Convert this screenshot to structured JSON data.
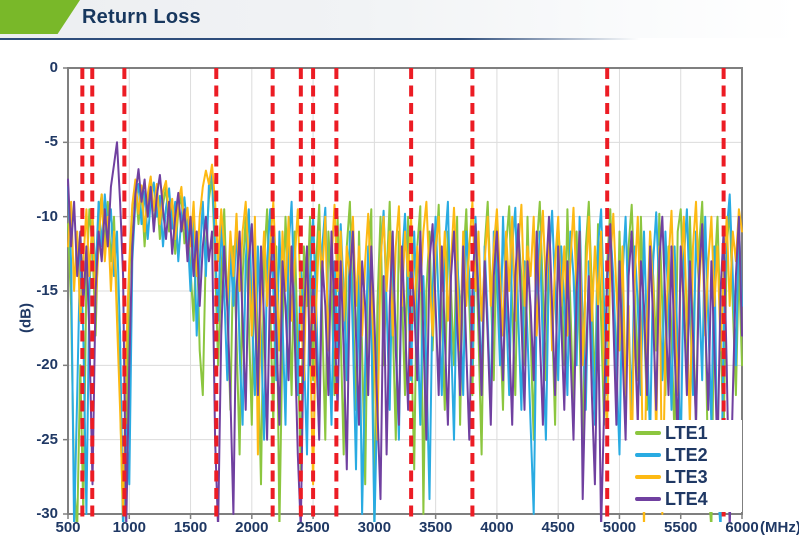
{
  "header": {
    "title": "Return Loss"
  },
  "chart_data": {
    "type": "line",
    "title": "Return Loss",
    "xlabel": "(MHz)",
    "ylabel": "(dB)",
    "xlim": [
      500,
      6000
    ],
    "ylim": [
      -30,
      0
    ],
    "x_ticks": [
      500,
      1000,
      1500,
      2000,
      2500,
      3000,
      3500,
      4000,
      4500,
      5000,
      5500,
      6000
    ],
    "y_ticks": [
      0,
      -5,
      -10,
      -15,
      -20,
      -25,
      -30
    ],
    "grid": true,
    "legend_position": "bottom-right",
    "band_edge_markers_mhz": [
      617,
      698,
      960,
      1710,
      2170,
      2400,
      2500,
      2690,
      3300,
      3800,
      4900,
      5850
    ],
    "colors": {
      "marker": "#ec1c24",
      "grid": "#dcdcdc",
      "axis": "#7f7f7f",
      "tick_text": "#1f3864"
    },
    "x_start": 500,
    "x_step": 25,
    "series": [
      {
        "name": "LTE1",
        "color": "#8cc63f",
        "values": [
          -10.5,
          -16,
          -28,
          -31,
          -20,
          -30,
          -14,
          -9.5,
          -12,
          -18,
          -10,
          -8.5,
          -12,
          -9,
          -13,
          -10,
          -16,
          -22,
          -31,
          -26,
          -14,
          -9.5,
          -7.8,
          -10.5,
          -8.2,
          -12,
          -8.8,
          -7.6,
          -10.8,
          -8.4,
          -11.5,
          -9.2,
          -8,
          -11,
          -9,
          -12.5,
          -9.6,
          -8.6,
          -11.8,
          -10.2,
          -13.5,
          -17,
          -11,
          -19,
          -22,
          -12,
          -8.8,
          -7.4,
          -13,
          -20,
          -14,
          -9.5,
          -16,
          -23,
          -12,
          -18,
          -26,
          -14,
          -10,
          -17,
          -24,
          -11,
          -19,
          -28,
          -13,
          -9.5,
          -16,
          -24,
          -12,
          -31,
          -18,
          -10,
          -15,
          -22,
          -11,
          -19,
          -27,
          -12,
          -16,
          -10,
          -21,
          -13,
          -9.2,
          -17,
          -25,
          -11,
          -15,
          -22,
          -10,
          -18,
          -26,
          -12,
          -9,
          -16,
          -23,
          -11,
          -19,
          -28,
          -13,
          -9.5,
          -31,
          -16,
          -10,
          -20,
          -14,
          -9,
          -17,
          -25,
          -11,
          -15,
          -22,
          -10,
          -18,
          -27,
          -12,
          -9.3,
          -30,
          -15,
          -11,
          -19,
          -13,
          -9.2,
          -17,
          -23,
          -11,
          -15,
          -20,
          -10,
          -24,
          -13,
          -9.5,
          -16,
          -22,
          -11,
          -18,
          -26,
          -12,
          -9,
          -15,
          -21,
          -10,
          -17,
          -23,
          -12,
          -9.3,
          -16,
          -22,
          -11,
          -14,
          -20,
          -10,
          -18,
          -25,
          -12,
          -9,
          -15,
          -21,
          -11,
          -17,
          -24,
          -10.5,
          -14,
          -20,
          -9.5,
          -16,
          -23,
          -11,
          -18,
          -26,
          -12,
          -9,
          -15,
          -22,
          -10.5,
          -17,
          -24,
          -13,
          -9.5,
          -16,
          -21,
          -11,
          -18,
          -24,
          -12,
          -9.2,
          -15,
          -21,
          -10,
          -17,
          -23,
          -11,
          -14,
          -19,
          -9.8,
          -16,
          -22,
          -12,
          -18,
          -25,
          -11,
          -9.5,
          -15,
          -21,
          -10,
          -17,
          -24,
          -12,
          -9,
          -16,
          -28,
          -31,
          -14,
          -10,
          -18,
          -25,
          -12,
          -9.5,
          -16,
          -22,
          -13,
          -20
        ]
      },
      {
        "name": "LTE2",
        "color": "#29abe2",
        "values": [
          -8,
          -13,
          -31,
          -22,
          -12,
          -18,
          -30,
          -15,
          -10,
          -14,
          -9,
          -12,
          -8.5,
          -11,
          -9.5,
          -14,
          -11,
          -18,
          -31,
          -24,
          -28,
          -13,
          -9,
          -7.8,
          -10.5,
          -8.3,
          -11.5,
          -9,
          -7.7,
          -10,
          -8.6,
          -12,
          -9.4,
          -8.1,
          -10.8,
          -9,
          -13,
          -10,
          -8.7,
          -11,
          -15,
          -10,
          -18,
          -13,
          -9,
          -14,
          -7.9,
          -6.8,
          -12,
          -17,
          -10,
          -15,
          -21,
          -12,
          -16,
          -10,
          -19,
          -24,
          -13,
          -9.5,
          -16,
          -22,
          -12,
          -18,
          -25,
          -13,
          -9.5,
          -15,
          -21,
          -11,
          -17,
          -24,
          -12,
          -9,
          -16,
          -22,
          -13,
          -19,
          -26,
          -14,
          -10,
          -16,
          -23,
          -12,
          -9.4,
          -17,
          -24,
          -13,
          -19,
          -10.5,
          -15,
          -21,
          -11,
          -18,
          -27,
          -14,
          -30,
          -20,
          -12,
          -17,
          -31,
          -22,
          -13,
          -9.6,
          -16,
          -23,
          -12,
          -18,
          -25,
          -13,
          -9.8,
          -15,
          -21,
          -11,
          -17,
          -24,
          -14,
          -20,
          -29,
          -15,
          -10,
          -16,
          -22,
          -12,
          -9,
          -18,
          -25,
          -13,
          -16,
          -22,
          -11,
          -14,
          -20,
          -10,
          -15,
          -21,
          -12,
          -17,
          -23,
          -11,
          -14,
          -20,
          -10,
          -16,
          -22,
          -12,
          -9.4,
          -17,
          -23,
          -13,
          -18,
          -24,
          -30,
          -16,
          -11,
          -19,
          -25,
          -13,
          -9.6,
          -15,
          -21,
          -12,
          -16,
          -22,
          -11,
          -14,
          -20,
          -10,
          -17,
          -23,
          -13,
          -18,
          -24,
          -12,
          -9.5,
          -16,
          -22,
          -11,
          -14,
          -20,
          -26,
          -14,
          -10,
          -17,
          -23,
          -12,
          -16,
          -22,
          -11,
          -18,
          -25,
          -13,
          -9.7,
          -15,
          -21,
          -11,
          -16,
          -23,
          -12,
          -19,
          -26,
          -13,
          -9.5,
          -16,
          -22,
          -11,
          -15,
          -21,
          -10,
          -17,
          -24,
          -12,
          -28,
          -31,
          -18,
          -11,
          -8.5,
          -14,
          -20,
          -10.5,
          -16
        ]
      },
      {
        "name": "LTE3",
        "color": "#fdb913",
        "values": [
          -12,
          -9,
          -15,
          -11,
          -17,
          -13,
          -9.5,
          -14,
          -10,
          -16,
          -12,
          -8.5,
          -13,
          -10,
          -15,
          -11,
          -17,
          -23,
          -30,
          -19,
          -13,
          -9.2,
          -7.5,
          -9.8,
          -7.9,
          -11,
          -8.5,
          -7.3,
          -9.6,
          -7.8,
          -10.5,
          -8.3,
          -7.6,
          -10,
          -8.8,
          -11.5,
          -9,
          -8,
          -10.8,
          -9.4,
          -12,
          -9,
          -14,
          -10,
          -8,
          -6.9,
          -7.8,
          -6.5,
          -9,
          -13,
          -9.5,
          -12,
          -16,
          -11,
          -14,
          -9.8,
          -15,
          -11,
          -9,
          -13,
          -18,
          -10,
          -26,
          -15,
          -11,
          -16,
          -12,
          -9,
          -14,
          -19,
          -11,
          -15,
          -10,
          -17,
          -13,
          -9.5,
          -16,
          -21,
          -12,
          -18,
          -28,
          -16,
          -11,
          -14,
          -10,
          -19,
          -13,
          -9.2,
          -15,
          -11,
          -17,
          -12,
          -14,
          -10,
          -16,
          -12,
          -18,
          -13,
          -9.8,
          -15,
          -20,
          -25,
          -13,
          -10,
          -15,
          -11,
          -18,
          -12,
          -9.3,
          -16,
          -11,
          -14,
          -10,
          -17,
          -12,
          -15,
          -11,
          -9,
          -14,
          -18,
          -12,
          -10,
          -15,
          -11,
          -17,
          -13,
          -9.4,
          -14,
          -19,
          -11,
          -16,
          -12,
          -9,
          -15,
          -11,
          -17,
          -13,
          -10,
          -16,
          -12,
          -9.5,
          -14,
          -18,
          -11,
          -15,
          -10,
          -17,
          -12,
          -9.2,
          -16,
          -12,
          -14,
          -10,
          -18,
          -13,
          -9.6,
          -15,
          -11,
          -19,
          -13,
          -10,
          -16,
          -12,
          -18,
          -13,
          -9.4,
          -15,
          -11,
          -20,
          -14,
          -10,
          -17,
          -12,
          -16,
          -11,
          -21,
          -24,
          -13,
          -9.8,
          -15,
          -19,
          -12,
          -22,
          -16,
          -27,
          -14,
          -10,
          -18,
          -31,
          -17,
          -11,
          -15,
          -25,
          -12,
          -30,
          -19,
          -13,
          -9.6,
          -16,
          -22,
          -14,
          -10,
          -17,
          -24,
          -12,
          -9,
          -15,
          -11,
          -18,
          -13,
          -10,
          -16,
          -12,
          -19,
          -14,
          -10,
          -16,
          -11,
          -13,
          -9.5,
          -11
        ]
      },
      {
        "name": "LTE4",
        "color": "#7040a0",
        "values": [
          -7.5,
          -12,
          -9,
          -14,
          -11,
          -16,
          -12,
          -18,
          -28,
          -15,
          -11,
          -13,
          -9.5,
          -12,
          -8,
          -6.5,
          -5,
          -9,
          -14,
          -31,
          -20,
          -12,
          -8.5,
          -6.8,
          -9,
          -7.5,
          -10,
          -8,
          -11,
          -8.6,
          -7.2,
          -9.5,
          -11.5,
          -9,
          -12.5,
          -10,
          -8.4,
          -11,
          -9.5,
          -13,
          -10,
          -14,
          -11,
          -16,
          -12,
          -10,
          -13,
          -11,
          -25,
          -31,
          -18,
          -12,
          -16,
          -22,
          -30,
          -15,
          -11,
          -17,
          -23,
          -13,
          -10.5,
          -16,
          -22,
          -12,
          -17,
          -25,
          -14,
          -11,
          -18,
          -24,
          -13,
          -16,
          -21,
          -12,
          -18,
          -26,
          -31,
          -17,
          -12,
          -20,
          -14,
          -19,
          -25,
          -13,
          -16,
          -22,
          -11,
          -17,
          -23,
          -13,
          -19,
          -27,
          -14,
          -11,
          -18,
          -24,
          -13,
          -16,
          -22,
          -12,
          -17,
          -23,
          -29,
          -14,
          -26,
          -16,
          -11,
          -19,
          -24,
          -12,
          -17,
          -23,
          -13,
          -16,
          -21,
          -11,
          -18,
          -25,
          -13,
          -10.5,
          -16,
          -22,
          -12,
          -18,
          -24,
          -14,
          -11,
          -17,
          -22,
          -12,
          -19,
          -25,
          -15,
          -10.5,
          -16,
          -22,
          -13,
          -18,
          -24,
          -14,
          -11,
          -16,
          -21,
          -13,
          -18,
          -24,
          -14,
          -10.5,
          -17,
          -23,
          -13,
          -16,
          -21,
          -11,
          -18,
          -24,
          -14,
          -10,
          -16,
          -22,
          -12,
          -17,
          -23,
          -13,
          -19,
          -25,
          -15,
          -11,
          -29,
          -20,
          -14,
          -22,
          -28,
          -16,
          -31,
          -23,
          -14,
          -10.5,
          -17,
          -24,
          -13,
          -19,
          -25,
          -14,
          -11,
          -18,
          -24,
          -13,
          -16,
          -22,
          -12,
          -17,
          -23,
          -13,
          -10,
          -16,
          -22,
          -12,
          -19,
          -25,
          -12,
          -16,
          -22,
          -13,
          -18,
          -24,
          -14,
          -10.5,
          -17,
          -23,
          -13,
          -19,
          -26,
          -15,
          -11,
          -20,
          -31,
          -22,
          -14,
          -10,
          -18
        ]
      }
    ]
  }
}
